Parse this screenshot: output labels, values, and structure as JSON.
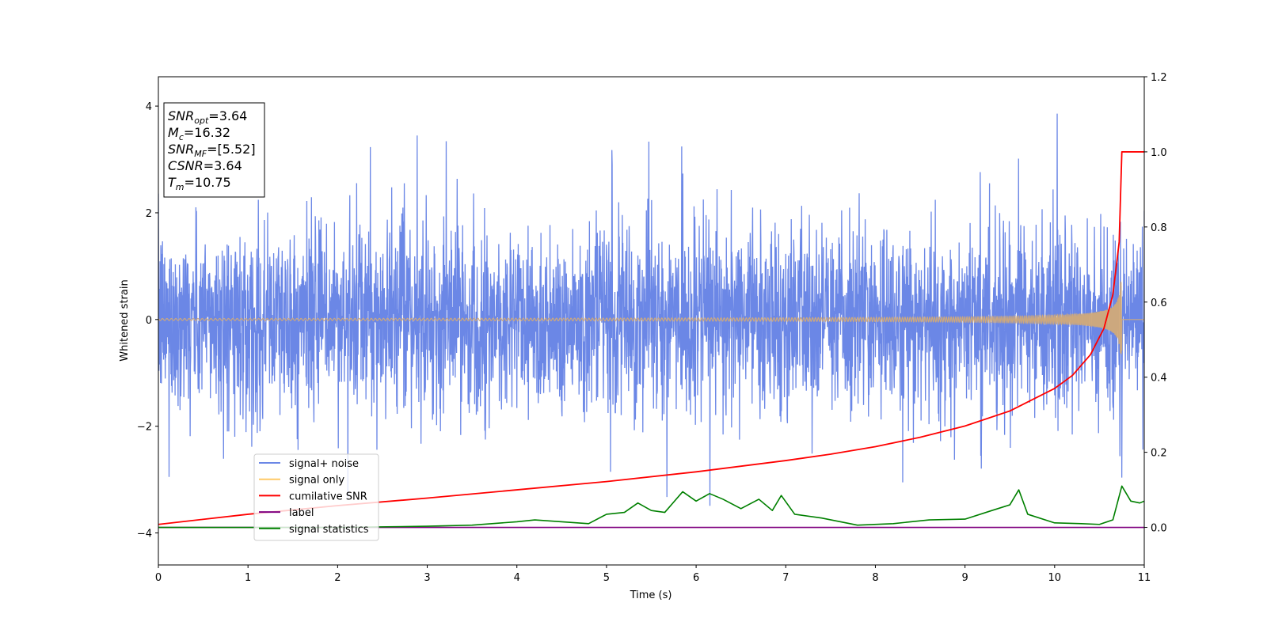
{
  "chart_data": {
    "type": "line",
    "xlabel": "Time (s)",
    "ylabel": "Whitened strain",
    "xlim": [
      0,
      11
    ],
    "ylim_left": [
      -4.6,
      4.55
    ],
    "ylim_right": [
      -0.1,
      1.2
    ],
    "x_ticks": [
      "0",
      "1",
      "2",
      "3",
      "4",
      "5",
      "6",
      "7",
      "8",
      "9",
      "10",
      "11"
    ],
    "y_ticks_left": [
      "−4",
      "−2",
      "0",
      "2",
      "4"
    ],
    "y_ticks_right": [
      "0.0",
      "0.2",
      "0.4",
      "0.6",
      "0.8",
      "1.0",
      "1.2"
    ],
    "info_box": [
      {
        "base": "SNR",
        "sub": "opt",
        "rest": "=3.64"
      },
      {
        "base": "M",
        "sub": "c",
        "rest": "=16.32"
      },
      {
        "base": "SNR",
        "sub": "MF",
        "rest": "=[5.52]"
      },
      {
        "base": "CSNR",
        "sub": "",
        "rest": "=3.64"
      },
      {
        "base": "T",
        "sub": "m",
        "rest": "=10.75"
      }
    ],
    "legend": [
      {
        "label": "signal+ noise",
        "color": "#6b87e6"
      },
      {
        "label": "signal only",
        "color": "#ffc966"
      },
      {
        "label": "cumilative SNR",
        "color": "#ff0000"
      },
      {
        "label": "label",
        "color": "#800080"
      },
      {
        "label": "signal statistics",
        "color": "#008000"
      }
    ],
    "series": [
      {
        "name": "signal+ noise",
        "axis": "left",
        "color": "#6b87e6",
        "noise_std": 0.85,
        "max": 4.15,
        "min": -4.15
      },
      {
        "name": "signal only",
        "axis": "left",
        "color": "#d2aa78",
        "chirp_end": 10.75,
        "peak_amplitude": 0.72
      },
      {
        "name": "cumilative SNR",
        "axis": "right",
        "color": "#ff0000",
        "x": [
          0,
          1,
          2,
          3,
          4,
          5,
          6,
          7,
          7.5,
          8,
          8.5,
          9,
          9.5,
          10,
          10.2,
          10.4,
          10.55,
          10.65,
          10.72,
          10.75,
          10.8,
          11
        ],
        "y": [
          0.008,
          0.035,
          0.058,
          0.078,
          0.1,
          0.122,
          0.148,
          0.178,
          0.195,
          0.215,
          0.24,
          0.27,
          0.31,
          0.37,
          0.405,
          0.46,
          0.53,
          0.62,
          0.76,
          1.0,
          1.0,
          1.0
        ]
      },
      {
        "name": "label",
        "axis": "right",
        "color": "#800080",
        "x": [
          0,
          11
        ],
        "y": [
          0,
          0
        ]
      },
      {
        "name": "signal statistics",
        "axis": "right",
        "color": "#008000",
        "x": [
          0,
          1,
          2,
          3,
          3.5,
          4,
          4.2,
          4.5,
          4.8,
          5,
          5.2,
          5.35,
          5.5,
          5.65,
          5.85,
          6,
          6.15,
          6.3,
          6.5,
          6.7,
          6.85,
          6.95,
          7.1,
          7.4,
          7.8,
          8.2,
          8.6,
          9,
          9.3,
          9.5,
          9.6,
          9.7,
          10,
          10.3,
          10.5,
          10.65,
          10.75,
          10.85,
          10.95,
          11
        ],
        "y": [
          0.0,
          0.0,
          0.0,
          0.003,
          0.006,
          0.015,
          0.02,
          0.015,
          0.01,
          0.035,
          0.04,
          0.065,
          0.045,
          0.04,
          0.095,
          0.07,
          0.09,
          0.075,
          0.05,
          0.075,
          0.045,
          0.085,
          0.035,
          0.025,
          0.006,
          0.01,
          0.02,
          0.022,
          0.045,
          0.06,
          0.1,
          0.035,
          0.012,
          0.01,
          0.008,
          0.02,
          0.11,
          0.07,
          0.065,
          0.07
        ]
      }
    ]
  }
}
